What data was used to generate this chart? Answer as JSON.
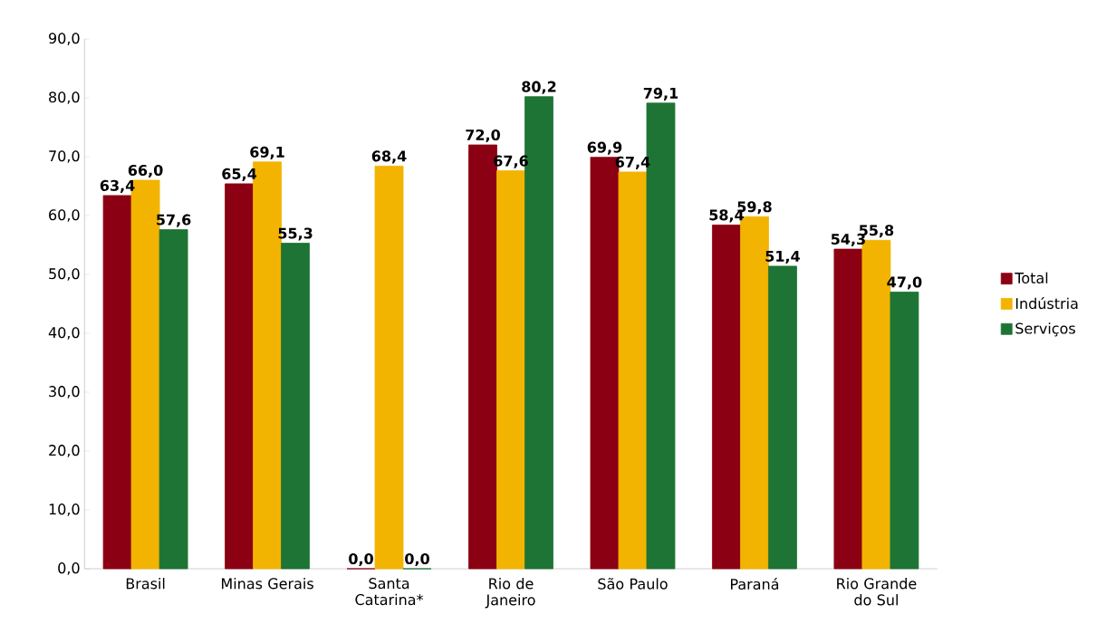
{
  "chart_data": {
    "type": "bar",
    "categories": [
      "Brasil",
      "Minas Gerais",
      "Santa Catarina*",
      "Rio de Janeiro",
      "São Paulo",
      "Paraná",
      "Rio Grande do Sul"
    ],
    "series": [
      {
        "name": "Total",
        "color": "#8b0012",
        "values": [
          63.4,
          65.4,
          0.0,
          72.0,
          69.9,
          58.4,
          54.3
        ],
        "value_labels": [
          "63,4",
          "65,4",
          "0,0",
          "72,0",
          "69,9",
          "58,4",
          "54,3"
        ]
      },
      {
        "name": "Indústria",
        "color": "#f2b400",
        "values": [
          66.0,
          69.1,
          68.4,
          67.6,
          67.4,
          59.8,
          55.8
        ],
        "value_labels": [
          "66,0",
          "69,1",
          "68,4",
          "67,6",
          "67,4",
          "59,8",
          "55,8"
        ]
      },
      {
        "name": "Serviços",
        "color": "#1e7434",
        "values": [
          57.6,
          55.3,
          0.0,
          80.2,
          79.1,
          51.4,
          47.0
        ],
        "value_labels": [
          "57,6",
          "55,3",
          "0,0",
          "80,2",
          "79,1",
          "51,4",
          "47,0"
        ]
      }
    ],
    "ylim": [
      0,
      90
    ],
    "yticks": [
      {
        "value": 0,
        "label": "0,0"
      },
      {
        "value": 10,
        "label": "10,0"
      },
      {
        "value": 20,
        "label": "20,0"
      },
      {
        "value": 30,
        "label": "30,0"
      },
      {
        "value": 40,
        "label": "40,0"
      },
      {
        "value": 50,
        "label": "50,0"
      },
      {
        "value": 60,
        "label": "60,0"
      },
      {
        "value": 70,
        "label": "70,0"
      },
      {
        "value": 80,
        "label": "80,0"
      },
      {
        "value": 90,
        "label": "90,0"
      }
    ],
    "grid": false,
    "legend": "right"
  }
}
